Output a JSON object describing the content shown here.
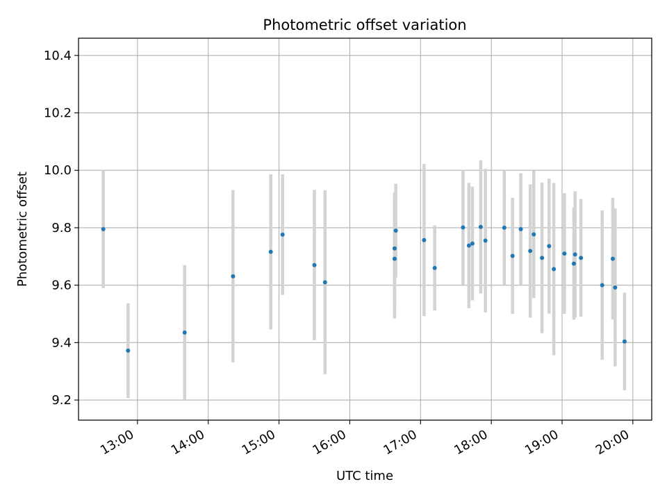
{
  "chart_data": {
    "type": "scatter",
    "title": "Photometric offset variation",
    "xlabel": "UTC time",
    "ylabel": "Photometric offset",
    "x_ticks": [
      "13:00",
      "14:00",
      "15:00",
      "16:00",
      "17:00",
      "18:00",
      "19:00",
      "20:00"
    ],
    "y_ticks": [
      "9.2",
      "9.4",
      "9.6",
      "9.8",
      "10.0",
      "10.2",
      "10.4"
    ],
    "xlim": [
      "12:10",
      "20:16"
    ],
    "ylim": [
      9.13,
      10.46
    ],
    "grid": true,
    "colors": {
      "marker": "#1f77b4",
      "errorbar": "#d3d3d3",
      "grid": "#b0b0b0"
    },
    "series": [
      {
        "points": [
          {
            "x": "12:31",
            "y": 9.795,
            "yerr": 0.205
          },
          {
            "x": "12:52",
            "y": 9.372,
            "yerr": 0.165
          },
          {
            "x": "13:40",
            "y": 9.435,
            "yerr": 0.235
          },
          {
            "x": "14:21",
            "y": 9.631,
            "yerr": 0.3
          },
          {
            "x": "14:53",
            "y": 9.716,
            "yerr": 0.27
          },
          {
            "x": "15:03",
            "y": 9.776,
            "yerr": 0.21
          },
          {
            "x": "15:30",
            "y": 9.67,
            "yerr": 0.262
          },
          {
            "x": "15:39",
            "y": 9.61,
            "yerr": 0.32
          },
          {
            "x": "16:38",
            "y": 9.728,
            "yerr": 0.195
          },
          {
            "x": "16:38",
            "y": 9.692,
            "yerr": 0.208
          },
          {
            "x": "16:39",
            "y": 9.79,
            "yerr": 0.163
          },
          {
            "x": "17:03",
            "y": 9.757,
            "yerr": 0.265
          },
          {
            "x": "17:12",
            "y": 9.66,
            "yerr": 0.148
          },
          {
            "x": "17:36",
            "y": 9.801,
            "yerr": 0.2
          },
          {
            "x": "17:41",
            "y": 9.738,
            "yerr": 0.218
          },
          {
            "x": "17:44",
            "y": 9.745,
            "yerr": 0.198
          },
          {
            "x": "17:51",
            "y": 9.803,
            "yerr": 0.232
          },
          {
            "x": "17:55",
            "y": 9.755,
            "yerr": 0.25
          },
          {
            "x": "18:11",
            "y": 9.8,
            "yerr": 0.2
          },
          {
            "x": "18:18",
            "y": 9.702,
            "yerr": 0.202
          },
          {
            "x": "18:25",
            "y": 9.795,
            "yerr": 0.195
          },
          {
            "x": "18:33",
            "y": 9.719,
            "yerr": 0.232
          },
          {
            "x": "18:36",
            "y": 9.777,
            "yerr": 0.222
          },
          {
            "x": "18:43",
            "y": 9.695,
            "yerr": 0.262
          },
          {
            "x": "18:49",
            "y": 9.736,
            "yerr": 0.235
          },
          {
            "x": "18:53",
            "y": 9.656,
            "yerr": 0.3
          },
          {
            "x": "19:02",
            "y": 9.71,
            "yerr": 0.21
          },
          {
            "x": "19:10",
            "y": 9.675,
            "yerr": 0.195
          },
          {
            "x": "19:11",
            "y": 9.707,
            "yerr": 0.22
          },
          {
            "x": "19:16",
            "y": 9.695,
            "yerr": 0.205
          },
          {
            "x": "19:34",
            "y": 9.6,
            "yerr": 0.26
          },
          {
            "x": "19:43",
            "y": 9.692,
            "yerr": 0.212
          },
          {
            "x": "19:45",
            "y": 9.592,
            "yerr": 0.275
          },
          {
            "x": "19:53",
            "y": 9.404,
            "yerr": 0.17
          }
        ]
      }
    ]
  }
}
